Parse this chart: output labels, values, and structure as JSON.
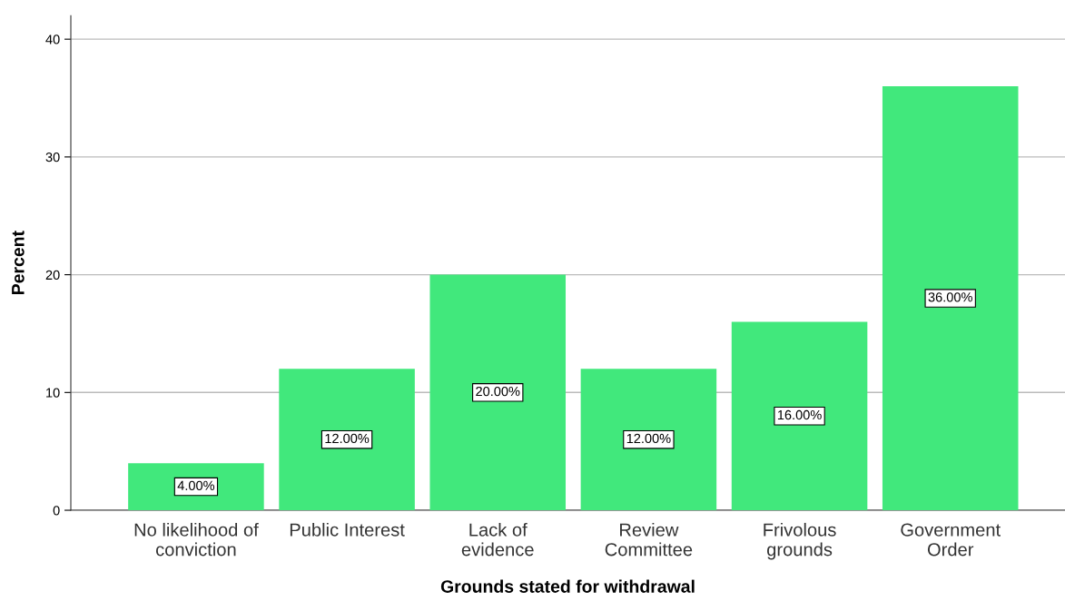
{
  "chart_data": {
    "type": "bar",
    "xlabel": "Grounds stated for withdrawal",
    "ylabel": "Percent",
    "categories": [
      "No likelihood of\nconviction",
      "Public Interest",
      "Lack of\nevidence",
      "Review\nCommittee",
      "Frivolous\ngrounds",
      "Government\nOrder"
    ],
    "values": [
      4,
      12,
      20,
      12,
      16,
      36
    ],
    "value_labels": [
      "4.00%",
      "12.00%",
      "20.00%",
      "12.00%",
      "16.00%",
      "36.00%"
    ],
    "color": "#41e87c",
    "ylim": [
      0,
      42
    ],
    "yticks": [
      0,
      10,
      20,
      30,
      40
    ],
    "grid": "y"
  }
}
